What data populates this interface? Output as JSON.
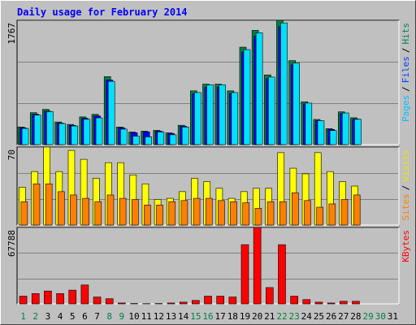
{
  "title": "Daily usage for February 2014",
  "legend_separator": "/",
  "x_axis": {
    "categories": [
      "1",
      "2",
      "3",
      "4",
      "5",
      "6",
      "7",
      "8",
      "9",
      "10",
      "11",
      "12",
      "13",
      "14",
      "15",
      "16",
      "17",
      "18",
      "19",
      "20",
      "21",
      "22",
      "23",
      "24",
      "25",
      "26",
      "27",
      "28",
      "29",
      "30",
      "31"
    ],
    "colors": [
      "#008040",
      "#008040",
      "#000000",
      "#000000",
      "#000000",
      "#000000",
      "#000000",
      "#008040",
      "#008040",
      "#000000",
      "#000000",
      "#000000",
      "#000000",
      "#000000",
      "#008040",
      "#008040",
      "#000000",
      "#000000",
      "#000000",
      "#000000",
      "#000000",
      "#008040",
      "#008040",
      "#000000",
      "#000000",
      "#000000",
      "#000000",
      "#000000",
      "#008040",
      "#008040",
      "#000000"
    ]
  },
  "chart_data": [
    {
      "type": "bar",
      "ylim": [
        0,
        1767
      ],
      "yticks": [
        1767
      ],
      "gridlines": [
        589,
        1178
      ],
      "series": [
        {
          "name": "Hits",
          "color": "#008040",
          "label_color": "#00805c",
          "values": [
            250,
            454,
            501,
            322,
            287,
            394,
            430,
            967,
            250,
            179,
            191,
            203,
            167,
            275,
            764,
            860,
            860,
            764,
            1385,
            1624,
            991,
            1767,
            1194,
            609,
            358,
            227,
            466,
            382,
            null,
            null,
            null
          ]
        },
        {
          "name": "Files",
          "color": "#0000ff",
          "label_color": "#0040ff",
          "values": [
            238,
            431,
            476,
            306,
            273,
            374,
            408,
            919,
            238,
            170,
            181,
            193,
            159,
            261,
            726,
            817,
            817,
            726,
            1316,
            1543,
            941,
            1679,
            1134,
            579,
            340,
            216,
            443,
            363,
            null,
            null,
            null
          ]
        },
        {
          "name": "Pages",
          "color": "#00e0ff",
          "label_color": "#00c0ff",
          "values": [
            230,
            420,
            470,
            300,
            265,
            360,
            380,
            900,
            220,
            120,
            110,
            180,
            140,
            250,
            740,
            850,
            850,
            740,
            1350,
            1590,
            960,
            1730,
            1160,
            590,
            340,
            200,
            450,
            360,
            null,
            null,
            null
          ]
        }
      ]
    },
    {
      "type": "bar",
      "ylim": [
        0,
        70
      ],
      "yticks": [
        70
      ],
      "gridlines": [
        23,
        47
      ],
      "series": [
        {
          "name": "Visits",
          "color": "#ffff00",
          "label_color": "#e8e800",
          "values": [
            34,
            48,
            70,
            48,
            67,
            59,
            42,
            56,
            56,
            45,
            37,
            23,
            24,
            30,
            42,
            39,
            33,
            24,
            30,
            33,
            33,
            65,
            51,
            46,
            65,
            48,
            39,
            35,
            null,
            null,
            null
          ]
        },
        {
          "name": "Sites",
          "color": "#ff8000",
          "label_color": "#ff8000",
          "values": [
            21,
            37,
            37,
            30,
            27,
            24,
            21,
            27,
            24,
            23,
            18,
            18,
            21,
            22,
            24,
            24,
            22,
            21,
            20,
            15,
            21,
            21,
            29,
            22,
            16,
            19,
            23,
            27,
            null,
            null,
            null
          ]
        }
      ]
    },
    {
      "type": "bar",
      "ylim": [
        0,
        67788
      ],
      "yticks": [
        67788
      ],
      "gridlines": [
        22596,
        45192
      ],
      "series": [
        {
          "name": "KBytes",
          "color": "#ff0000",
          "label_color": "#ff0000",
          "values": [
            6855,
            9140,
            11425,
            9140,
            12187,
            16757,
            6093,
            4570,
            762,
            300,
            200,
            300,
            762,
            1523,
            3047,
            6855,
            6855,
            6093,
            52555,
            67788,
            14472,
            52555,
            6855,
            3808,
            1523,
            762,
            2285,
            2285,
            null,
            null,
            null
          ]
        }
      ]
    }
  ]
}
